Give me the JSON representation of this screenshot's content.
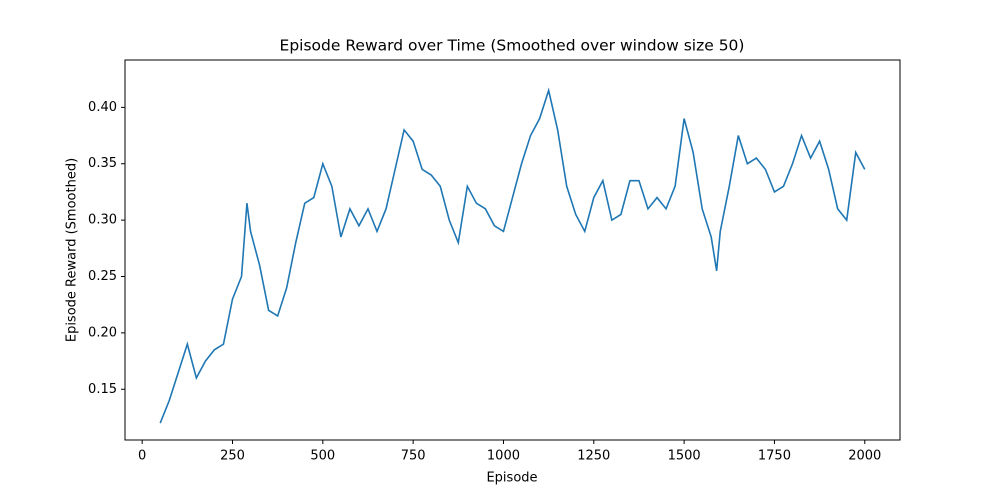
{
  "chart_data": {
    "type": "line",
    "title": "Episode Reward over Time (Smoothed over window size 50)",
    "x_label": "Episode",
    "y_label": "Episode Reward (Smoothed)",
    "x": [
      50,
      75,
      100,
      125,
      150,
      175,
      200,
      225,
      250,
      275,
      290,
      300,
      325,
      350,
      375,
      400,
      425,
      450,
      475,
      500,
      525,
      550,
      575,
      600,
      625,
      650,
      675,
      700,
      725,
      750,
      775,
      800,
      825,
      850,
      875,
      900,
      925,
      950,
      975,
      1000,
      1025,
      1050,
      1075,
      1100,
      1125,
      1150,
      1175,
      1200,
      1225,
      1250,
      1275,
      1300,
      1325,
      1350,
      1375,
      1400,
      1425,
      1450,
      1475,
      1500,
      1525,
      1550,
      1575,
      1590,
      1600,
      1625,
      1650,
      1675,
      1700,
      1725,
      1750,
      1775,
      1800,
      1825,
      1850,
      1875,
      1900,
      1925,
      1950,
      1975,
      2000
    ],
    "series": [
      {
        "name": "Episode Reward",
        "color": "#1f77b4",
        "values": [
          0.12,
          0.14,
          0.165,
          0.19,
          0.16,
          0.175,
          0.185,
          0.19,
          0.23,
          0.25,
          0.315,
          0.29,
          0.26,
          0.22,
          0.215,
          0.24,
          0.28,
          0.315,
          0.32,
          0.35,
          0.33,
          0.285,
          0.31,
          0.295,
          0.31,
          0.29,
          0.31,
          0.345,
          0.38,
          0.37,
          0.345,
          0.34,
          0.33,
          0.3,
          0.28,
          0.33,
          0.315,
          0.31,
          0.295,
          0.29,
          0.32,
          0.35,
          0.375,
          0.39,
          0.415,
          0.38,
          0.33,
          0.305,
          0.29,
          0.32,
          0.335,
          0.3,
          0.305,
          0.335,
          0.335,
          0.31,
          0.32,
          0.31,
          0.33,
          0.39,
          0.36,
          0.31,
          0.285,
          0.255,
          0.29,
          0.33,
          0.375,
          0.35,
          0.355,
          0.345,
          0.325,
          0.33,
          0.35,
          0.375,
          0.355,
          0.37,
          0.345,
          0.31,
          0.3,
          0.36,
          0.345
        ]
      }
    ],
    "xlim": [
      -47.5,
      2097.5
    ],
    "ylim": [
      0.105,
      0.442
    ],
    "xticks": [
      0,
      250,
      500,
      750,
      1000,
      1250,
      1500,
      1750,
      2000
    ],
    "yticks": [
      0.15,
      {
        "value": 0.2,
        "label": "0.20"
      },
      0.25,
      {
        "value": 0.3,
        "label": "0.30"
      },
      0.35,
      {
        "value": 0.4,
        "label": "0.40"
      }
    ]
  }
}
